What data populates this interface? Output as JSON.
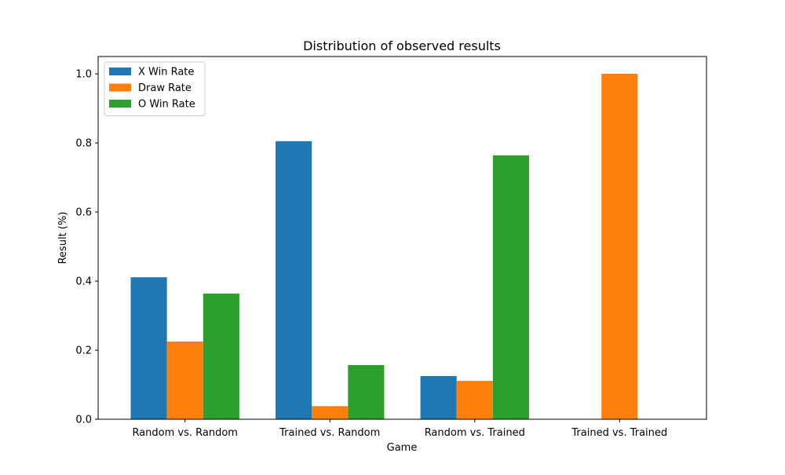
{
  "chart_data": {
    "type": "bar",
    "title": "Distribution of observed results",
    "xlabel": "Game",
    "ylabel": "Result (%)",
    "categories": [
      "Random vs. Random",
      "Trained vs. Random",
      "Random vs. Trained",
      "Trained vs. Trained"
    ],
    "series": [
      {
        "name": "X Win Rate",
        "color": "#1f77b4",
        "values": [
          0.411,
          0.805,
          0.125,
          0.0
        ]
      },
      {
        "name": "Draw Rate",
        "color": "#ff7f0e",
        "values": [
          0.225,
          0.038,
          0.111,
          1.0
        ]
      },
      {
        "name": "O Win Rate",
        "color": "#2ca02c",
        "values": [
          0.364,
          0.157,
          0.764,
          0.0
        ]
      }
    ],
    "ylim": [
      0,
      1.05
    ],
    "yticks": [
      "0.0",
      "0.2",
      "0.4",
      "0.6",
      "0.8",
      "1.0"
    ],
    "grid": false,
    "legend_position": "upper-left"
  }
}
